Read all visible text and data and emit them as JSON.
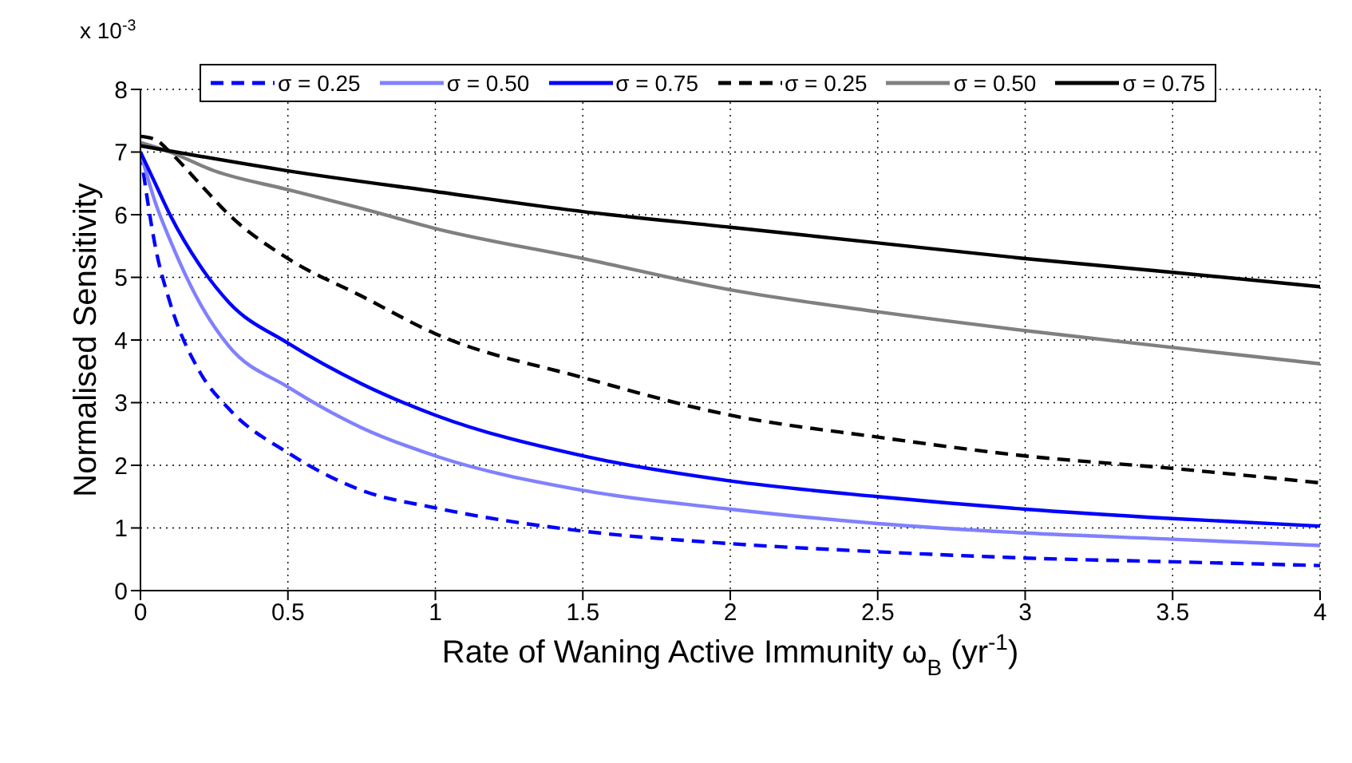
{
  "chart_data": {
    "type": "line",
    "xlabel": "Rate of Waning Active Immunity  ω$_{B}$ (yr$^{-1}$)",
    "ylabel": "Normalised Sensitivity",
    "annotations": [
      "x 10$^{-3}$"
    ],
    "xlim": [
      0,
      4
    ],
    "xticks": [
      0,
      0.5,
      1,
      1.5,
      2,
      2.5,
      3,
      3.5,
      4
    ],
    "ylim": [
      0,
      8
    ],
    "yticks": [
      0,
      1,
      2,
      3,
      4,
      5,
      6,
      7,
      8
    ],
    "grid": true,
    "legend": "top",
    "series": [
      {
        "name": "σ = 0.25",
        "color": "#0000ff",
        "line_style": "dashed",
        "x": [
          0,
          0.05,
          0.1,
          0.2,
          0.3,
          0.5,
          0.75,
          1,
          1.5,
          2,
          2.5,
          3,
          3.5,
          4
        ],
        "values": [
          7.0,
          5.5,
          4.6,
          3.5,
          2.9,
          2.2,
          1.6,
          1.32,
          0.95,
          0.75,
          0.62,
          0.52,
          0.46,
          0.4
        ]
      },
      {
        "name": "σ = 0.50",
        "color": "#8080ff",
        "line_style": "solid",
        "x": [
          0,
          0.05,
          0.1,
          0.2,
          0.3,
          0.5,
          0.75,
          1,
          1.5,
          2,
          2.5,
          3,
          3.5,
          4
        ],
        "values": [
          7.0,
          6.2,
          5.6,
          4.6,
          3.9,
          3.25,
          2.6,
          2.15,
          1.6,
          1.3,
          1.07,
          0.92,
          0.82,
          0.72
        ]
      },
      {
        "name": "σ = 0.75",
        "color": "#0000ff",
        "line_style": "solid",
        "x": [
          0,
          0.05,
          0.1,
          0.2,
          0.3,
          0.5,
          0.75,
          1,
          1.5,
          2,
          2.5,
          3,
          3.5,
          4
        ],
        "values": [
          7.0,
          6.5,
          6.0,
          5.2,
          4.6,
          3.95,
          3.3,
          2.8,
          2.15,
          1.75,
          1.5,
          1.3,
          1.15,
          1.03
        ]
      },
      {
        "name": "σ = 0.25",
        "color": "#000000",
        "line_style": "dashed",
        "x": [
          0,
          0.05,
          0.1,
          0.2,
          0.3,
          0.5,
          0.75,
          1,
          1.5,
          2,
          2.5,
          3,
          3.5,
          4
        ],
        "values": [
          7.25,
          7.2,
          7.0,
          6.5,
          6.0,
          5.3,
          4.7,
          4.1,
          3.4,
          2.8,
          2.45,
          2.15,
          1.95,
          1.72
        ]
      },
      {
        "name": "σ = 0.50",
        "color": "#808080",
        "line_style": "solid",
        "x": [
          0,
          0.1,
          0.25,
          0.5,
          0.75,
          1,
          1.5,
          2,
          2.5,
          3,
          3.5,
          4
        ],
        "values": [
          7.15,
          7.0,
          6.7,
          6.4,
          6.1,
          5.78,
          5.3,
          4.8,
          4.45,
          4.15,
          3.88,
          3.62
        ]
      },
      {
        "name": "σ = 0.75",
        "color": "#000000",
        "line_style": "solid",
        "x": [
          0,
          0.5,
          1,
          1.5,
          2,
          2.5,
          3,
          3.5,
          4
        ],
        "values": [
          7.1,
          6.7,
          6.37,
          6.05,
          5.8,
          5.55,
          5.3,
          5.08,
          4.85
        ]
      }
    ]
  }
}
